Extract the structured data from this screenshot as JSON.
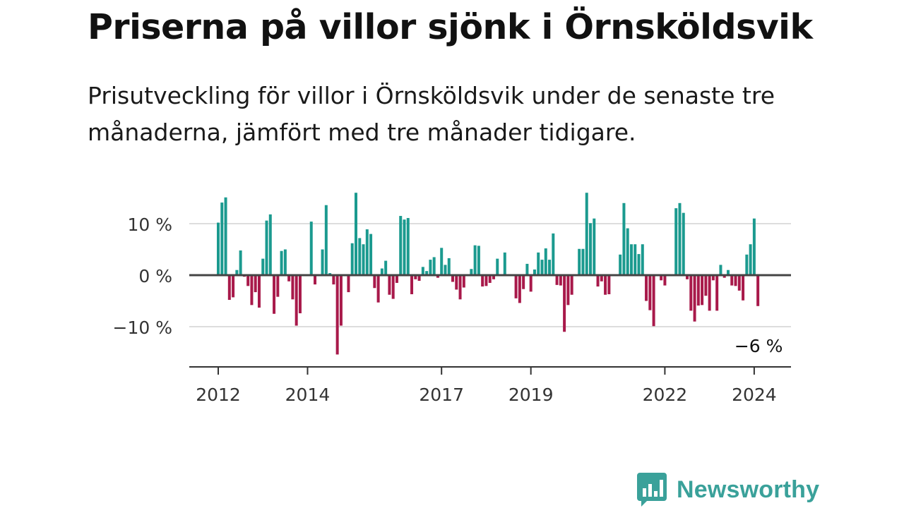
{
  "header": {
    "title": "Priserna på villor sjönk i Örnsköldsvik",
    "subtitle": "Prisutveckling för villor i Örnsköldsvik under de senaste tre månaderna, jämfört med tre månader tidigare."
  },
  "branding": {
    "name": "Newsworthy",
    "icon": "bar-chart-speech-bubble-icon"
  },
  "colors": {
    "positive": "#1b9a8f",
    "negative": "#a8194a",
    "grid": "#dddddd",
    "axis": "#333333",
    "brand": "#3aa19a"
  },
  "chart_data": {
    "type": "bar",
    "title": "Priserna på villor sjönk i Örnsköldsvik",
    "y_unit": "%",
    "ylim": [
      -18,
      18
    ],
    "y_ticks": [
      10,
      0,
      -10
    ],
    "y_tick_labels": [
      "10 %",
      "0 %",
      "−10 %"
    ],
    "x_tick_labels": [
      {
        "label": "2012",
        "index": 0
      },
      {
        "label": "2014",
        "index": 24
      },
      {
        "label": "2017",
        "index": 60
      },
      {
        "label": "2019",
        "index": 84
      },
      {
        "label": "2022",
        "index": 120
      },
      {
        "label": "2024",
        "index": 144
      }
    ],
    "grid": true,
    "last_value_label": "−6 %",
    "start": "2012-01",
    "end": "2024-03",
    "values": [
      10.2,
      14.1,
      15.1,
      -4.8,
      -4.3,
      1,
      4.8,
      -0.3,
      -2.1,
      -5.8,
      -3.3,
      -6.3,
      3.2,
      10.6,
      11.8,
      -7.5,
      -4.2,
      4.7,
      5,
      -1.2,
      -4.7,
      -9.8,
      -7.4,
      0.2,
      0,
      10.4,
      -1.8,
      0,
      5,
      13.6,
      0.4,
      -1.8,
      -15.4,
      -9.8,
      0,
      -3.3,
      6.2,
      16,
      7.2,
      6,
      8.9,
      8,
      -2.5,
      -5.3,
      1.3,
      2.8,
      -3.8,
      -4.6,
      -1.5,
      11.5,
      10.8,
      11.1,
      -3.7,
      -0.8,
      -1.1,
      1.6,
      0.8,
      3,
      3.5,
      -0.5,
      5.3,
      2,
      3.3,
      -1.3,
      -2.8,
      -4.7,
      -2.4,
      0,
      1.2,
      5.8,
      5.7,
      -2.2,
      -2.1,
      -1.5,
      -0.8,
      3.2,
      0.2,
      4.4,
      0,
      0.2,
      -4.5,
      -5.4,
      -2.7,
      2.2,
      -3.2,
      1.1,
      4.4,
      3,
      5.2,
      3,
      8.1,
      -1.9,
      -2,
      -11,
      -5.8,
      -3.8,
      0,
      5.1,
      5.1,
      16,
      10.1,
      11,
      -2.2,
      -1.2,
      -3.8,
      -3.7,
      0,
      0,
      4,
      14,
      9.1,
      6,
      6,
      4.1,
      6,
      -5,
      -6.8,
      -9.9,
      0,
      -1,
      -2,
      -0.2,
      0,
      13,
      14,
      12.1,
      -0.8,
      -6.9,
      -9,
      -5.9,
      -5.8,
      -4,
      -6.9,
      -1,
      -6.9,
      2,
      -0.5,
      1,
      -2,
      -2.1,
      -3,
      -4.9,
      4,
      6,
      11,
      -6
    ]
  }
}
